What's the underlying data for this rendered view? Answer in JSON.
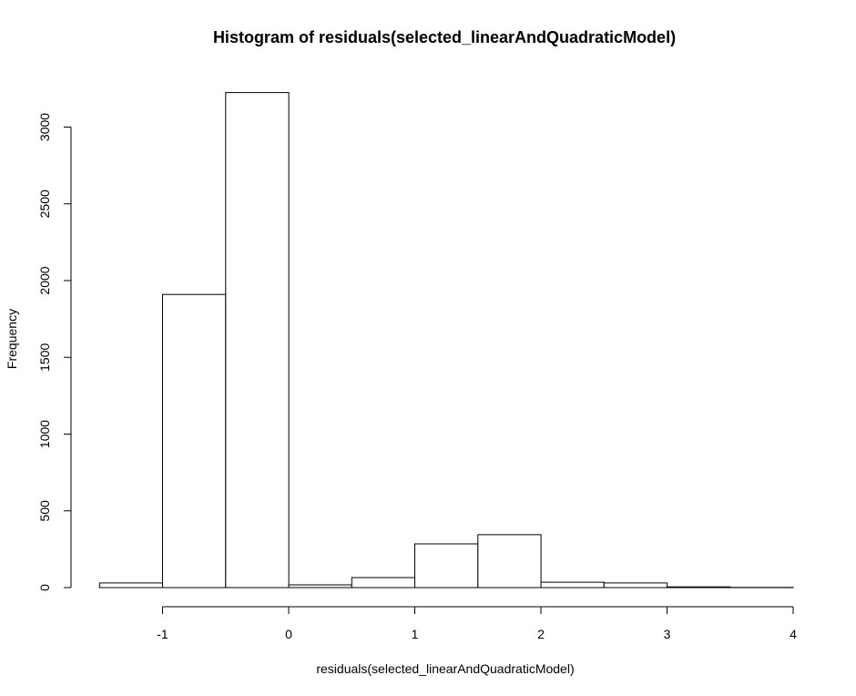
{
  "chart_data": {
    "type": "bar",
    "title": "Histogram of residuals(selected_linearAndQuadraticModel)",
    "xlabel": "residuals(selected_linearAndQuadraticModel)",
    "ylabel": "Frequency",
    "bins": [
      {
        "start": -1.5,
        "end": -1.0,
        "count": 30
      },
      {
        "start": -1.0,
        "end": -0.5,
        "count": 1910
      },
      {
        "start": -0.5,
        "end": 0.0,
        "count": 3225
      },
      {
        "start": 0.0,
        "end": 0.5,
        "count": 18
      },
      {
        "start": 0.5,
        "end": 1.0,
        "count": 65
      },
      {
        "start": 1.0,
        "end": 1.5,
        "count": 285
      },
      {
        "start": 1.5,
        "end": 2.0,
        "count": 345
      },
      {
        "start": 2.0,
        "end": 2.5,
        "count": 35
      },
      {
        "start": 2.5,
        "end": 3.0,
        "count": 30
      },
      {
        "start": 3.0,
        "end": 3.5,
        "count": 5
      },
      {
        "start": 3.5,
        "end": 4.0,
        "count": 1
      }
    ],
    "xticks": [
      -1,
      0,
      1,
      2,
      3,
      4
    ],
    "xtick_labels": [
      "-1",
      "0",
      "1",
      "2",
      "3",
      "4"
    ],
    "yticks": [
      0,
      500,
      1000,
      1500,
      2000,
      2500,
      3000
    ],
    "ytick_labels": [
      "0",
      "500",
      "1000",
      "1500",
      "2000",
      "2500",
      "3000"
    ],
    "xlim": [
      -1.5,
      4
    ],
    "ylim": [
      0,
      3000
    ],
    "grid": false
  }
}
